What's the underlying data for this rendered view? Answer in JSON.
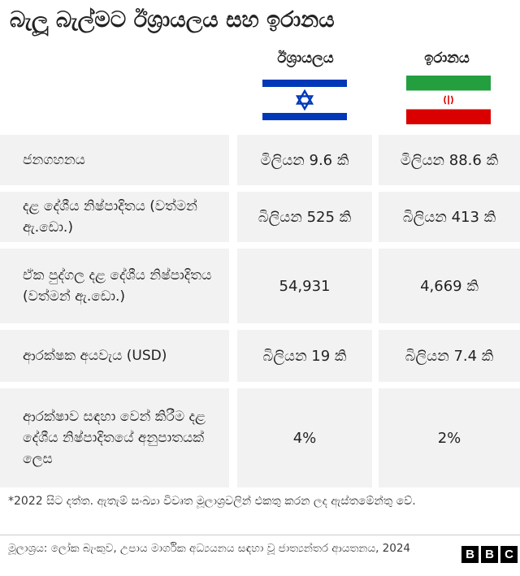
{
  "title": "බැලූ බැල්මට ඊශ්‍රායලය සහ ඉරානය",
  "countries": {
    "israel": {
      "name": "ඊශ්‍රායලය",
      "flag_icon": "israel-flag-icon",
      "colors": {
        "blue": "#0038b8",
        "white": "#ffffff"
      }
    },
    "iran": {
      "name": "ඉරානය",
      "flag_icon": "iran-flag-icon",
      "colors": {
        "green": "#239f40",
        "white": "#ffffff",
        "red": "#da0000"
      }
    }
  },
  "chart_data": {
    "type": "table",
    "columns": [
      "ඊශ්‍රායලය",
      "ඉරානය"
    ],
    "rows": [
      {
        "label": "ජනගහනය",
        "israel": "මිලියන 9.6 කි",
        "iran": "මිලියන 88.6 කි"
      },
      {
        "label": "දළ දේශීය නිෂ්පාදිතය (වත්මන් ඇ.ඩො.)",
        "israel": "බිලියන 525 කි",
        "iran": "බිලියන 413 කි"
      },
      {
        "label": "ඒක පුද්ගල දළ දේශීය නිෂ්පාදිතය (වත්මන් ඇ.ඩො.)",
        "israel": "54,931",
        "iran": "4,669 කි"
      },
      {
        "label": "ආරක්ෂක අයවැය (USD)",
        "israel": "බිලියන 19 කි",
        "iran": "බිලියන 7.4 කි"
      },
      {
        "label": "ආරක්ෂාව සඳහා වෙන් කිරීම දළ දේශීය නිෂ්පාදිතයේ අනුපාතයක් ලෙස",
        "israel": "4%",
        "iran": "2%"
      }
    ]
  },
  "footnote": "*2022 සිට දත්ත. ඇතැම් සංඛ්‍යා විවෘත මූලාශ්‍රවලින් එකතු කරන ලද ඇස්තමේන්තු වේ.",
  "source": "මූලාශ්‍රය: ලෝක බැංකුව, උපාය මාර්ගික අධ්‍යයනය සඳහා වූ ජාත්‍යන්තර ආයතනය, 2024",
  "logo": {
    "letters": [
      "B",
      "B",
      "C"
    ]
  }
}
